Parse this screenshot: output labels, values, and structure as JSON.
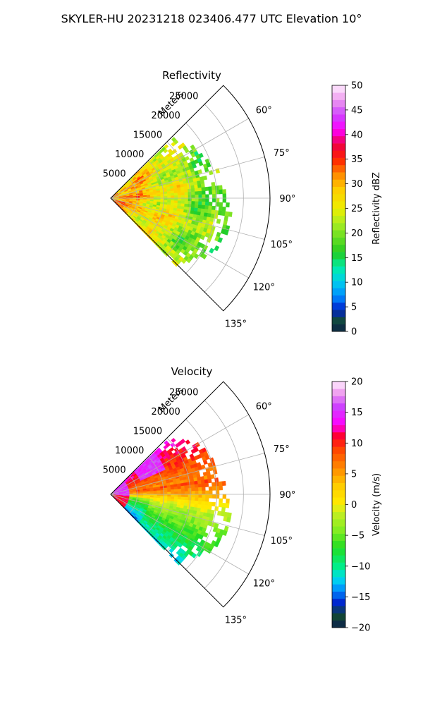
{
  "figure_title": "SKYLER-HU  20231218  023406.477 UTC Elevation 10°",
  "chart_data": [
    {
      "type": "heatmap",
      "subtype": "polar-sector-ppi",
      "title": "Reflectivity",
      "range_axis_label": "Meters",
      "range_ticks": [
        "5000",
        "10000",
        "15000",
        "20000",
        "25000"
      ],
      "range_tick_values": [
        5000,
        10000,
        15000,
        20000,
        25000
      ],
      "range_max": 30000,
      "azimuth_range_deg": [
        45,
        135
      ],
      "azimuth_ticks": [
        "60°",
        "75°",
        "90°",
        "105°",
        "120°",
        "135°"
      ],
      "azimuth_tick_values": [
        60,
        75,
        90,
        105,
        120,
        135
      ],
      "grid": true,
      "colorbar": {
        "label": "Reflectivity dBZ",
        "range": [
          0,
          50
        ],
        "ticks": [
          "0",
          "5",
          "10",
          "15",
          "20",
          "25",
          "30",
          "35",
          "40",
          "45",
          "50"
        ],
        "tick_values": [
          0,
          5,
          10,
          15,
          20,
          25,
          30,
          35,
          40,
          45,
          50
        ],
        "colormap": "nws-reflectivity",
        "stops": [
          {
            "v": 0,
            "c": "#0b1f4d"
          },
          {
            "v": 2,
            "c": "#134a33"
          },
          {
            "v": 4.5,
            "c": "#0022cc"
          },
          {
            "v": 7,
            "c": "#0088ff"
          },
          {
            "v": 10,
            "c": "#00ccee"
          },
          {
            "v": 13,
            "c": "#00eeaa"
          },
          {
            "v": 16,
            "c": "#22cc22"
          },
          {
            "v": 19,
            "c": "#66dd22"
          },
          {
            "v": 22,
            "c": "#aaee22"
          },
          {
            "v": 25,
            "c": "#eeee00"
          },
          {
            "v": 29,
            "c": "#ffcc00"
          },
          {
            "v": 32,
            "c": "#ff8800"
          },
          {
            "v": 35,
            "c": "#ff2200"
          },
          {
            "v": 38,
            "c": "#ee0044"
          },
          {
            "v": 41,
            "c": "#ff00ff"
          },
          {
            "v": 44,
            "c": "#cc44ff"
          },
          {
            "v": 47,
            "c": "#ee99ee"
          },
          {
            "v": 50,
            "c": "#ffeeff"
          }
        ]
      },
      "echo_extent_m_by_azimuth": [
        [
          50,
          16000
        ],
        [
          60,
          19000
        ],
        [
          70,
          20000
        ],
        [
          80,
          21000
        ],
        [
          90,
          21500
        ],
        [
          100,
          23000
        ],
        [
          110,
          22500
        ],
        [
          120,
          21000
        ],
        [
          130,
          18000
        ]
      ],
      "dominant_values_dbz": {
        "near_range": [
          25,
          35
        ],
        "mid_range": [
          20,
          30
        ],
        "far_range": [
          15,
          22
        ]
      }
    },
    {
      "type": "heatmap",
      "subtype": "polar-sector-ppi",
      "title": "Velocity",
      "range_axis_label": "Meters",
      "range_ticks": [
        "5000",
        "10000",
        "15000",
        "20000",
        "25000"
      ],
      "range_tick_values": [
        5000,
        10000,
        15000,
        20000,
        25000
      ],
      "range_max": 30000,
      "azimuth_range_deg": [
        45,
        135
      ],
      "azimuth_ticks": [
        "60°",
        "75°",
        "90°",
        "105°",
        "120°",
        "135°"
      ],
      "azimuth_tick_values": [
        60,
        75,
        90,
        105,
        120,
        135
      ],
      "grid": true,
      "colorbar": {
        "label": "Velocity (m/s)",
        "range": [
          -20,
          20
        ],
        "ticks": [
          "−20",
          "−15",
          "−10",
          "−5",
          "0",
          "5",
          "10",
          "15",
          "20"
        ],
        "tick_values": [
          -20,
          -15,
          -10,
          -5,
          0,
          5,
          10,
          15,
          20
        ],
        "colormap": "velocity",
        "stops": [
          {
            "v": -20,
            "c": "#0b1f4d"
          },
          {
            "v": -18,
            "c": "#134a33"
          },
          {
            "v": -16,
            "c": "#0022cc"
          },
          {
            "v": -14,
            "c": "#0088ff"
          },
          {
            "v": -12,
            "c": "#00ddee"
          },
          {
            "v": -10,
            "c": "#00ee88"
          },
          {
            "v": -7,
            "c": "#22dd22"
          },
          {
            "v": -4,
            "c": "#88ee22"
          },
          {
            "v": -1,
            "c": "#ccee22"
          },
          {
            "v": 0,
            "c": "#ffee00"
          },
          {
            "v": 3,
            "c": "#ffcc00"
          },
          {
            "v": 6,
            "c": "#ff8800"
          },
          {
            "v": 9,
            "c": "#ff4400"
          },
          {
            "v": 11,
            "c": "#ff0022"
          },
          {
            "v": 13,
            "c": "#ff00ff"
          },
          {
            "v": 16,
            "c": "#cc44ff"
          },
          {
            "v": 18,
            "c": "#ee99ee"
          },
          {
            "v": 20,
            "c": "#ffeeff"
          }
        ]
      },
      "echo_extent_m_by_azimuth": [
        [
          50,
          16000
        ],
        [
          60,
          19000
        ],
        [
          70,
          20000
        ],
        [
          80,
          21000
        ],
        [
          90,
          21500
        ],
        [
          100,
          23000
        ],
        [
          110,
          22500
        ],
        [
          120,
          21000
        ],
        [
          130,
          18000
        ]
      ],
      "dominant_values_ms": {
        "azimuth_60_80": [
          8,
          12
        ],
        "azimuth_85_100": [
          -2,
          2
        ],
        "azimuth_100_135": [
          -12,
          -5
        ],
        "near_radar_edges": [
          13,
          17
        ]
      }
    }
  ]
}
